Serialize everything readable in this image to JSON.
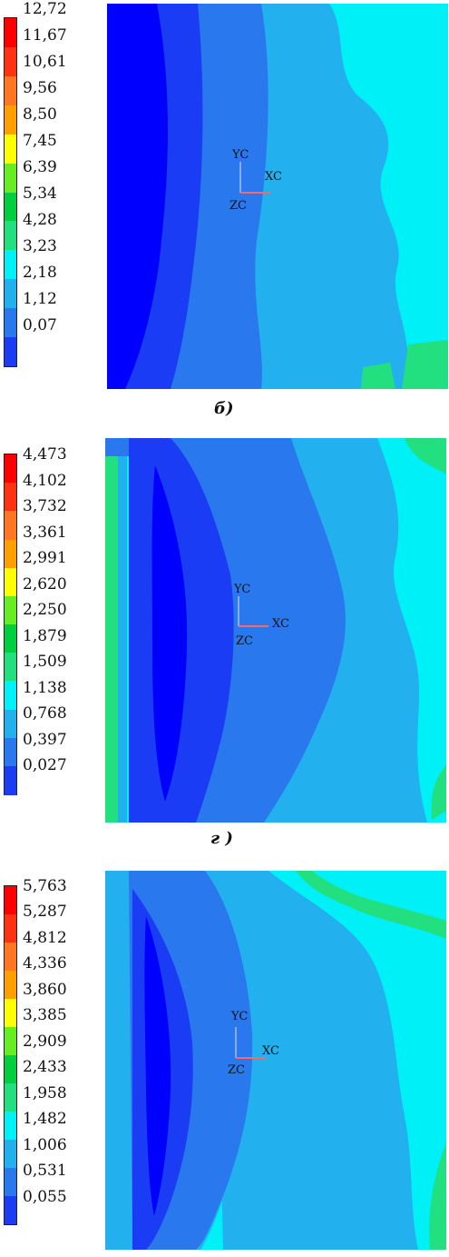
{
  "palette": [
    "#0000ff",
    "#1a3cf5",
    "#2a78ee",
    "#22b0ee",
    "#00f0f8",
    "#22e080",
    "#00d040",
    "#66ee22",
    "#ffff00",
    "#ffa000",
    "#ff7722",
    "#ff3311",
    "#ff0000"
  ],
  "panels": [
    {
      "legend_values": [
        "12,72",
        "11,67",
        "10,61",
        "9,56",
        "8,50",
        "7,45",
        "6,39",
        "5,34",
        "4,28",
        "3,23",
        "2,18",
        "1,12",
        "0,07"
      ],
      "caption": "б)",
      "axes": {
        "y": "YC",
        "x": "XC",
        "z": "ZC"
      }
    },
    {
      "legend_values": [
        "4,473",
        "4,102",
        "3,732",
        "3,361",
        "2,991",
        "2,620",
        "2,250",
        "1,879",
        "1,509",
        "1,138",
        "0,768",
        "0,397",
        "0,027"
      ],
      "caption": "г )",
      "axes": {
        "y": "YC",
        "x": "XC",
        "z": "ZC"
      }
    },
    {
      "legend_values": [
        "5,763",
        "5,287",
        "4,812",
        "4,336",
        "3,860",
        "3,385",
        "2,909",
        "2,433",
        "1,958",
        "1,482",
        "1,006",
        "0,531",
        "0,055"
      ],
      "caption": "",
      "axes": {
        "y": "YC",
        "x": "XC",
        "z": "ZC"
      }
    }
  ]
}
